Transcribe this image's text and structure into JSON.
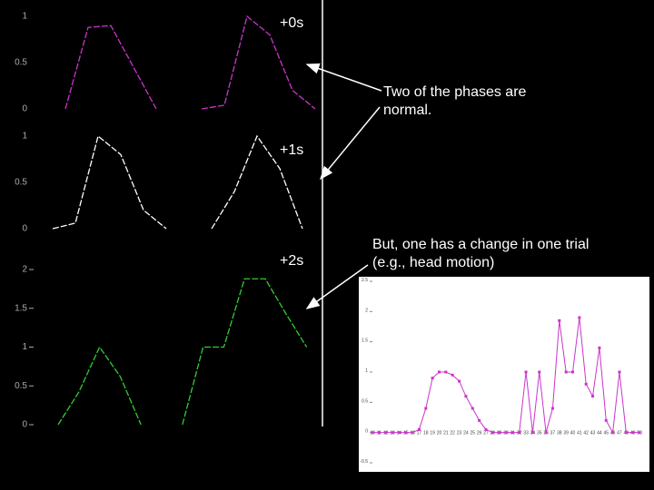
{
  "chart_data": [
    {
      "type": "line",
      "annotation": "+0s",
      "color": "#cc33cc",
      "ylim": [
        0,
        1
      ],
      "yticks": [
        0,
        0.5,
        1
      ],
      "values": [
        0,
        0.88,
        0.9,
        0.45,
        0,
        null,
        0,
        0.04,
        1,
        0.8,
        0.2,
        0
      ]
    },
    {
      "type": "line",
      "annotation": "+1s",
      "color": "#ffffff",
      "ylim": [
        0,
        1
      ],
      "yticks": [
        0,
        0.5,
        1
      ],
      "values": [
        0,
        0.06,
        1,
        0.8,
        0.2,
        0,
        null,
        0,
        0.4,
        1,
        0.65,
        0
      ]
    },
    {
      "type": "line",
      "annotation": "+2s",
      "color": "#33cc33",
      "ylim": [
        0,
        2
      ],
      "yticks": [
        0,
        0.5,
        1,
        1.5,
        2
      ],
      "values": [
        0,
        0.42,
        1,
        0.62,
        0,
        null,
        0,
        1,
        1,
        1.88,
        1.88,
        1.43,
        1
      ]
    },
    {
      "type": "marker-line",
      "color": "#cc33cc",
      "ylim": [
        -0.5,
        2.5
      ],
      "yticks": [
        -0.5,
        0,
        0.5,
        1,
        1.5,
        2,
        2.5
      ],
      "categories": [
        "10",
        "11",
        "12",
        "13",
        "14",
        "15",
        "16",
        "17",
        "18",
        "19",
        "20",
        "21",
        "22",
        "23",
        "24",
        "25",
        "26",
        "27",
        "28",
        "29",
        "30",
        "31",
        "32",
        "33",
        "34",
        "35",
        "36",
        "37",
        "38",
        "39",
        "40",
        "41",
        "42",
        "43",
        "44",
        "45",
        "46",
        "47",
        "48",
        "49",
        "50"
      ],
      "values": [
        0,
        0,
        0,
        0,
        0,
        0,
        0,
        0.05,
        0.4,
        0.9,
        1,
        1,
        0.95,
        0.85,
        0.6,
        0.4,
        0.2,
        0.05,
        0,
        0,
        0,
        0,
        0,
        1,
        0,
        1,
        0,
        0.4,
        1.85,
        1,
        1,
        1.9,
        0.8,
        0.6,
        1.4,
        0.2,
        0,
        1,
        0,
        0,
        0
      ]
    }
  ],
  "notes": [
    [
      "Two of the phases are",
      "normal."
    ],
    [
      "But, one has a change in one trial",
      "(e.g., head motion)"
    ]
  ]
}
